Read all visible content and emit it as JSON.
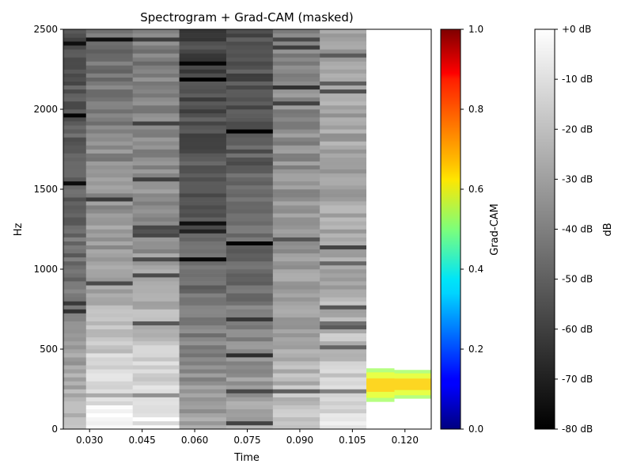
{
  "chart_data": {
    "type": "heatmap",
    "title": "Spectrogram + Grad-CAM (masked)",
    "xlabel": "Time",
    "ylabel": "Hz",
    "x_ticks": [
      "0.030",
      "0.045",
      "0.060",
      "0.075",
      "0.090",
      "0.105",
      "0.120"
    ],
    "x_tick_values": [
      0.03,
      0.045,
      0.06,
      0.075,
      0.09,
      0.105,
      0.12
    ],
    "xlim": [
      0.0225,
      0.1275
    ],
    "y_ticks": [
      "0",
      "500",
      "1000",
      "1500",
      "2000",
      "2500"
    ],
    "y_tick_values": [
      0,
      500,
      1000,
      1500,
      2000,
      2500
    ],
    "ylim": [
      0,
      2500
    ],
    "spectrogram_colormap": "gray",
    "time_frames": [
      0.0225,
      0.029,
      0.0423,
      0.0556,
      0.069,
      0.0823,
      0.0957,
      0.109,
      0.1275
    ],
    "frame_brightness_profiles": [
      {
        "t_start": 0.0225,
        "t_end": 0.029,
        "low_db": -20,
        "mid_db": -45,
        "high_db": -55
      },
      {
        "t_start": 0.029,
        "t_end": 0.0423,
        "low_db": -3,
        "mid_db": -30,
        "high_db": -45
      },
      {
        "t_start": 0.0423,
        "t_end": 0.0556,
        "low_db": -5,
        "mid_db": -32,
        "high_db": -42
      },
      {
        "t_start": 0.0556,
        "t_end": 0.069,
        "low_db": -30,
        "mid_db": -48,
        "high_db": -58
      },
      {
        "t_start": 0.069,
        "t_end": 0.0823,
        "low_db": -28,
        "mid_db": -46,
        "high_db": -56
      },
      {
        "t_start": 0.0823,
        "t_end": 0.0957,
        "low_db": -18,
        "mid_db": -33,
        "high_db": -38
      },
      {
        "t_start": 0.0957,
        "t_end": 0.109,
        "low_db": -10,
        "mid_db": -28,
        "high_db": -30
      },
      {
        "t_start": 0.109,
        "t_end": 0.1275,
        "low_db": 0,
        "mid_db": 0,
        "high_db": 0
      }
    ],
    "gradcam_regions": [
      {
        "t_start": 0.109,
        "t_end": 0.117,
        "f_low": 170,
        "f_high": 380,
        "max_value": 0.65
      },
      {
        "t_start": 0.117,
        "t_end": 0.1275,
        "f_low": 190,
        "f_high": 370,
        "max_value": 0.62
      }
    ],
    "colorbar_gradcam": {
      "label": "Grad-CAM",
      "colormap": "jet",
      "range": [
        0.0,
        1.0
      ],
      "ticks": [
        "0.0",
        "0.2",
        "0.4",
        "0.6",
        "0.8",
        "1.0"
      ],
      "tick_values": [
        0.0,
        0.2,
        0.4,
        0.6,
        0.8,
        1.0
      ]
    },
    "colorbar_db": {
      "label": "dB",
      "colormap": "gray",
      "range": [
        -80,
        0
      ],
      "ticks": [
        "+0 dB",
        "-10 dB",
        "-20 dB",
        "-30 dB",
        "-40 dB",
        "-50 dB",
        "-60 dB",
        "-70 dB",
        "-80 dB"
      ],
      "tick_values": [
        0,
        -10,
        -20,
        -30,
        -40,
        -50,
        -60,
        -70,
        -80
      ]
    }
  }
}
